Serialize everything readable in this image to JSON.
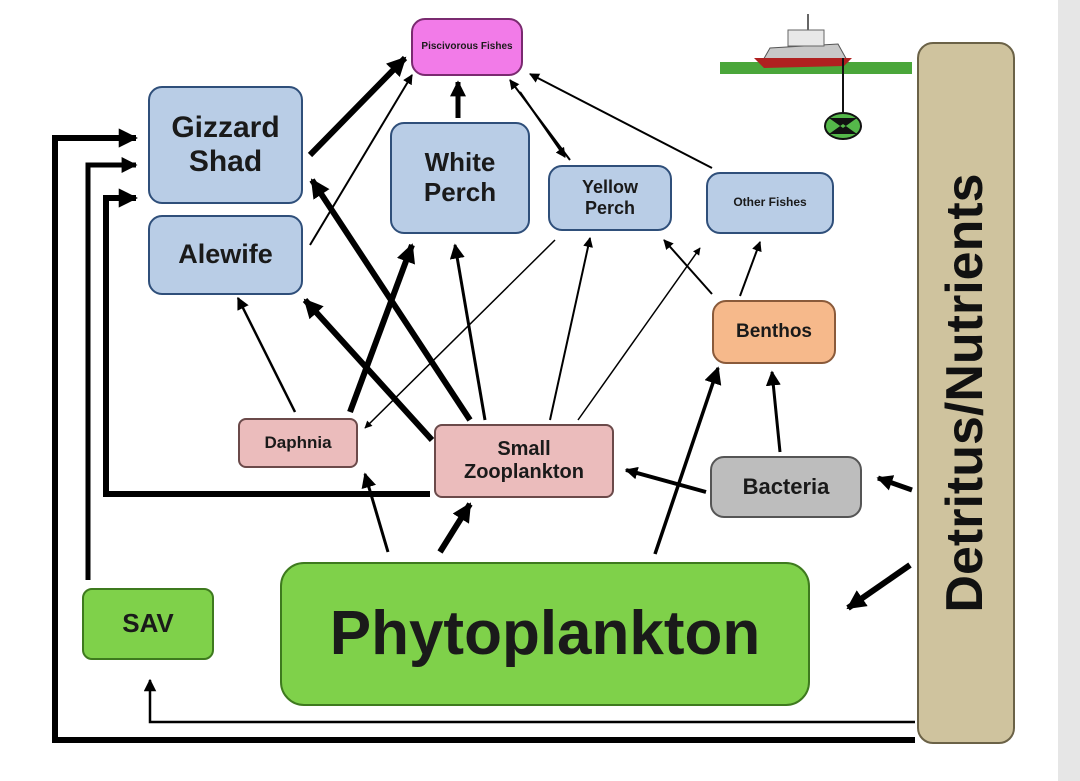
{
  "nodes": {
    "piscivorous": "Piscivorous Fishes",
    "gizzard_shad": "Gizzard Shad",
    "alewife": "Alewife",
    "white_perch": "White Perch",
    "yellow_perch": "Yellow Perch",
    "other_fishes": "Other Fishes",
    "benthos": "Benthos",
    "daphnia": "Daphnia",
    "small_zooplankton": "Small Zooplankton",
    "bacteria": "Bacteria",
    "phytoplankton": "Phytoplankton",
    "sav": "SAV",
    "detritus": "Detritus/Nutrients"
  },
  "colors": {
    "fish": "#b9cde6",
    "zooplankton": "#ebbcbc",
    "producer": "#7fd14a",
    "benthos": "#f6b98b",
    "bacteria": "#bdbdbd",
    "predator": "#f27be8",
    "detritus": "#cfc39e"
  },
  "icons": [
    "research-boat-icon",
    "sampling-buoy-icon"
  ]
}
